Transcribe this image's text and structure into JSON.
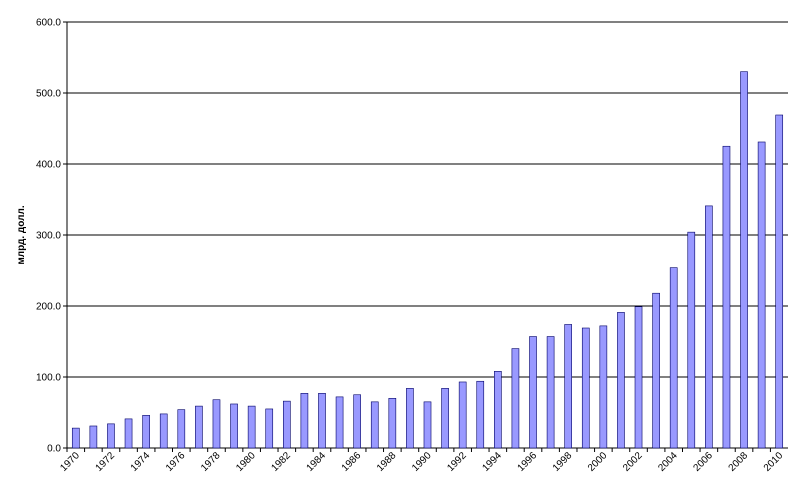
{
  "chart_data": {
    "type": "bar",
    "y_label": "млрд. долл.",
    "categories": [
      "1970",
      null,
      "1972",
      null,
      "1974",
      null,
      "1976",
      null,
      "1978",
      null,
      "1980",
      null,
      "1982",
      null,
      "1984",
      null,
      "1986",
      null,
      "1988",
      null,
      "1990",
      null,
      "1992",
      null,
      "1994",
      null,
      "1996",
      null,
      "1998",
      null,
      "2000",
      null,
      "2002",
      null,
      "2004",
      null,
      "2006",
      null,
      "2008",
      null,
      "2010"
    ],
    "values": [
      28,
      31,
      34,
      41,
      46,
      48,
      54,
      59,
      68,
      62,
      59,
      55,
      66,
      77,
      77,
      72,
      75,
      65,
      70,
      84,
      65,
      84,
      93,
      94,
      108,
      140,
      157,
      157,
      174,
      169,
      172,
      191,
      199,
      218,
      254,
      304,
      341,
      425,
      530,
      431,
      469
    ],
    "color": "#9999ff",
    "ylim": [
      0,
      600
    ],
    "yticks": [
      {
        "value": 0,
        "label": "0.0"
      },
      {
        "value": 100,
        "label": "100.0"
      },
      {
        "value": 200,
        "label": "200.0"
      },
      {
        "value": 300,
        "label": "300.0"
      },
      {
        "value": 400,
        "label": "400.0"
      },
      {
        "value": 500,
        "label": "500.0"
      },
      {
        "value": 600,
        "label": "600.0"
      }
    ],
    "grid": true
  }
}
